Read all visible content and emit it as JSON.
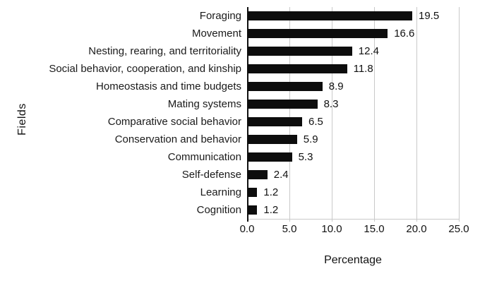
{
  "chart_data": {
    "type": "bar",
    "orientation": "horizontal",
    "title": "",
    "xlabel": "Percentage",
    "ylabel": "Fields",
    "xlim": [
      0,
      25
    ],
    "xticks": [
      0,
      5,
      10,
      15,
      20,
      25
    ],
    "xtick_labels": [
      "0.0",
      "5.0",
      "10.0",
      "15.0",
      "20.0",
      "25.0"
    ],
    "grid": true,
    "bar_color": "#0d0d0d",
    "gridline_color": "#c9c9c9",
    "categories": [
      "Foraging",
      "Movement",
      "Nesting, rearing, and territoriality",
      "Social  behavior, cooperation, and kinship",
      "Homeostasis and time budgets",
      "Mating systems",
      "Comparative social behavior",
      "Conservation and behavior",
      "Communication",
      "Self-defense",
      "Learning",
      "Cognition"
    ],
    "values": [
      19.5,
      16.6,
      12.4,
      11.8,
      8.9,
      8.3,
      6.5,
      5.9,
      5.3,
      2.4,
      1.2,
      1.2
    ],
    "value_labels": [
      "19.5",
      "16.6",
      "12.4",
      "11.8",
      "8.9",
      "8.3",
      "6.5",
      "5.9",
      "5.3",
      "2.4",
      "1.2",
      "1.2"
    ]
  }
}
